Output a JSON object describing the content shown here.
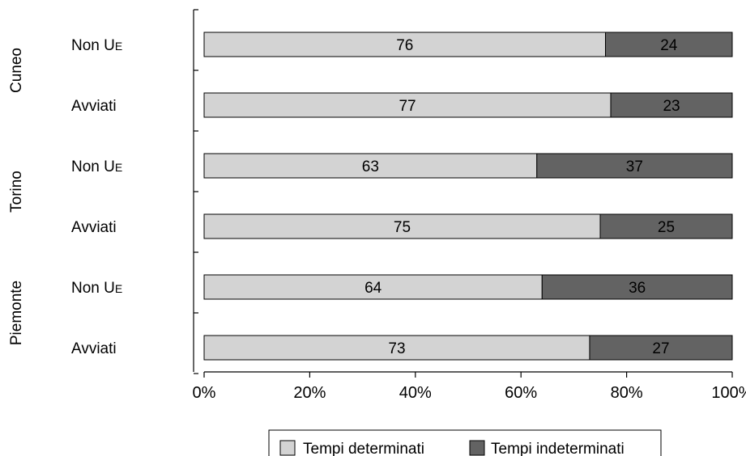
{
  "chart_data": {
    "type": "bar",
    "orientation": "horizontal",
    "stacked": true,
    "percent_scale": true,
    "groups": [
      {
        "name": "Cuneo",
        "categories": [
          "Non UE",
          "Avviati"
        ]
      },
      {
        "name": "Torino",
        "categories": [
          "Non UE",
          "Avviati"
        ]
      },
      {
        "name": "Piemonte",
        "categories": [
          "Non UE",
          "Avviati"
        ]
      }
    ],
    "categories": [
      "Non UE",
      "Avviati",
      "Non UE",
      "Avviati",
      "Non UE",
      "Avviati"
    ],
    "series": [
      {
        "name": "Tempi determinati",
        "values": [
          76,
          77,
          63,
          75,
          64,
          73
        ]
      },
      {
        "name": "Tempi indeterminati",
        "values": [
          24,
          23,
          37,
          25,
          36,
          27
        ]
      }
    ],
    "xlim": [
      0,
      100
    ],
    "xticks": [
      "0%",
      "20%",
      "40%",
      "60%",
      "80%",
      "100%"
    ],
    "xlabel": "",
    "ylabel": "",
    "title": "",
    "grid": false,
    "legend_position": "bottom",
    "colors": {
      "Tempi determinati": "#d3d3d3",
      "Tempi indeterminati": "#636363"
    }
  }
}
